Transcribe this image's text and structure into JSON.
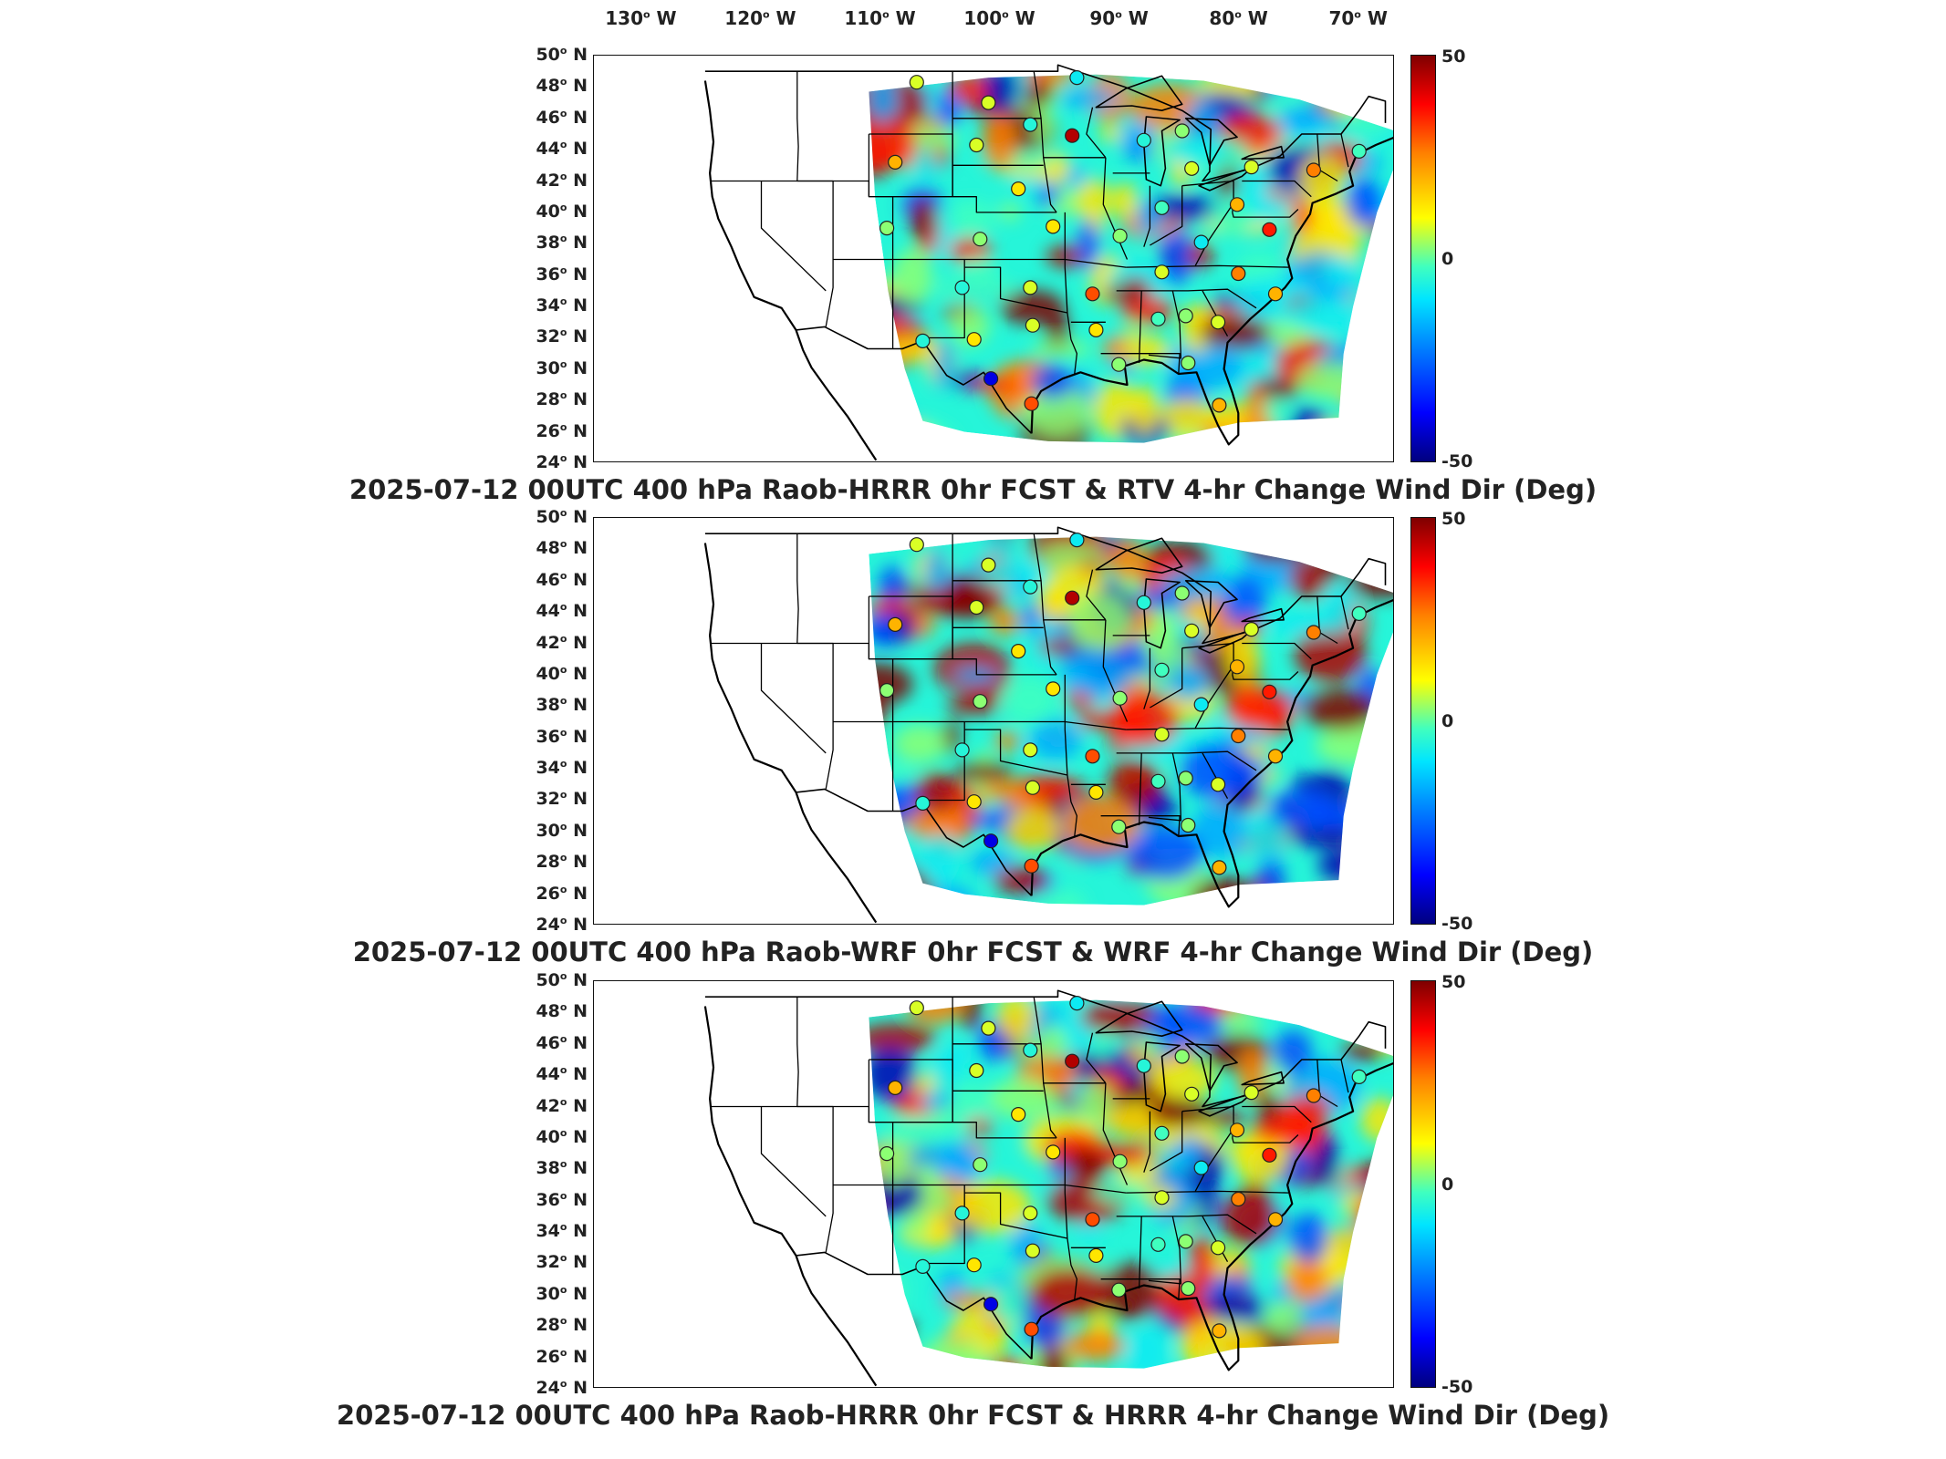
{
  "lon_labels": [
    "130",
    "120",
    "110",
    "100",
    "90",
    "80",
    "70"
  ],
  "lon_suffix": "W",
  "lat_labels": [
    "50",
    "48",
    "46",
    "44",
    "42",
    "40",
    "38",
    "36",
    "34",
    "32",
    "30",
    "28",
    "26",
    "24"
  ],
  "lat_suffix": "N",
  "colorbar": {
    "max": "50",
    "mid": "0",
    "min": "-50",
    "colors": [
      "#00007f",
      "#0000ff",
      "#0080ff",
      "#00e5ff",
      "#40ffbf",
      "#ffff00",
      "#ff8000",
      "#ff0000",
      "#7f0000"
    ]
  },
  "panels": [
    {
      "title": "2025-07-12 00UTC 400 hPa Raob-HRRR 0hr FCST & RTV 4-hr Change Wind Dir (Deg)"
    },
    {
      "title": "2025-07-12 00UTC 400 hPa Raob-WRF 0hr FCST & WRF 4-hr Change Wind Dir (Deg)"
    },
    {
      "title": "2025-07-12 00UTC 400 hPa Raob-HRRR 0hr FCST & HRRR 4-hr Change Wind Dir (Deg)"
    }
  ],
  "map_extent": {
    "lon_min": -134,
    "lon_max": -67,
    "lat_min": 24,
    "lat_max": 50
  },
  "stations": [
    {
      "lon": -107,
      "lat": 48.3,
      "v": 10
    },
    {
      "lon": -101,
      "lat": 47.0,
      "v": 10
    },
    {
      "lon": -93.6,
      "lat": 48.6,
      "v": -10
    },
    {
      "lon": -97.5,
      "lat": 45.6,
      "v": -5
    },
    {
      "lon": -94,
      "lat": 44.9,
      "v": 45
    },
    {
      "lon": -108.8,
      "lat": 43.2,
      "v": 20
    },
    {
      "lon": -102,
      "lat": 44.3,
      "v": 10
    },
    {
      "lon": -98.5,
      "lat": 41.5,
      "v": 15
    },
    {
      "lon": -88,
      "lat": 44.6,
      "v": -5
    },
    {
      "lon": -84.8,
      "lat": 45.2,
      "v": 5
    },
    {
      "lon": -84,
      "lat": 42.8,
      "v": 10
    },
    {
      "lon": -79,
      "lat": 42.9,
      "v": 10
    },
    {
      "lon": -73.8,
      "lat": 42.7,
      "v": 25
    },
    {
      "lon": -70,
      "lat": 43.9,
      "v": 0
    },
    {
      "lon": -86.5,
      "lat": 40.3,
      "v": 0
    },
    {
      "lon": -80.2,
      "lat": 40.5,
      "v": 20
    },
    {
      "lon": -109.5,
      "lat": 39.0,
      "v": 5
    },
    {
      "lon": -101.7,
      "lat": 38.3,
      "v": 5
    },
    {
      "lon": -95.6,
      "lat": 39.1,
      "v": 15
    },
    {
      "lon": -90,
      "lat": 38.5,
      "v": 5
    },
    {
      "lon": -83.2,
      "lat": 38.1,
      "v": -10
    },
    {
      "lon": -77.5,
      "lat": 38.9,
      "v": 35
    },
    {
      "lon": -103.2,
      "lat": 35.2,
      "v": -5
    },
    {
      "lon": -97.5,
      "lat": 35.2,
      "v": 10
    },
    {
      "lon": -92.3,
      "lat": 34.8,
      "v": 30
    },
    {
      "lon": -86.5,
      "lat": 36.2,
      "v": 10
    },
    {
      "lon": -80.1,
      "lat": 36.1,
      "v": 25
    },
    {
      "lon": -77.0,
      "lat": 34.8,
      "v": 20
    },
    {
      "lon": -106.5,
      "lat": 31.8,
      "v": -5
    },
    {
      "lon": -102.2,
      "lat": 31.9,
      "v": 15
    },
    {
      "lon": -97.3,
      "lat": 32.8,
      "v": 10
    },
    {
      "lon": -92.0,
      "lat": 32.5,
      "v": 15
    },
    {
      "lon": -86.8,
      "lat": 33.2,
      "v": 0
    },
    {
      "lon": -84.5,
      "lat": 33.4,
      "v": 5
    },
    {
      "lon": -81.8,
      "lat": 33.0,
      "v": 10
    },
    {
      "lon": -100.8,
      "lat": 29.4,
      "v": -40
    },
    {
      "lon": -97.4,
      "lat": 27.8,
      "v": 30
    },
    {
      "lon": -90.1,
      "lat": 30.3,
      "v": 5
    },
    {
      "lon": -84.3,
      "lat": 30.4,
      "v": 5
    },
    {
      "lon": -81.7,
      "lat": 27.7,
      "v": 20
    }
  ]
}
